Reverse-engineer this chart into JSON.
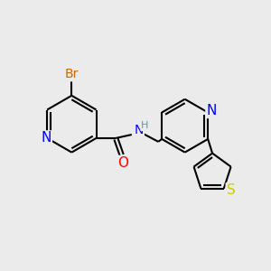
{
  "bg_color": "#ebebeb",
  "atom_colors": {
    "N": "#0000ff",
    "O": "#ff0000",
    "Br": "#cc6600",
    "S": "#cccc00",
    "H": "#5a9ea0",
    "C": "#000000"
  },
  "font_size": 9,
  "fig_size": [
    3.0,
    3.0
  ],
  "dpi": 100
}
